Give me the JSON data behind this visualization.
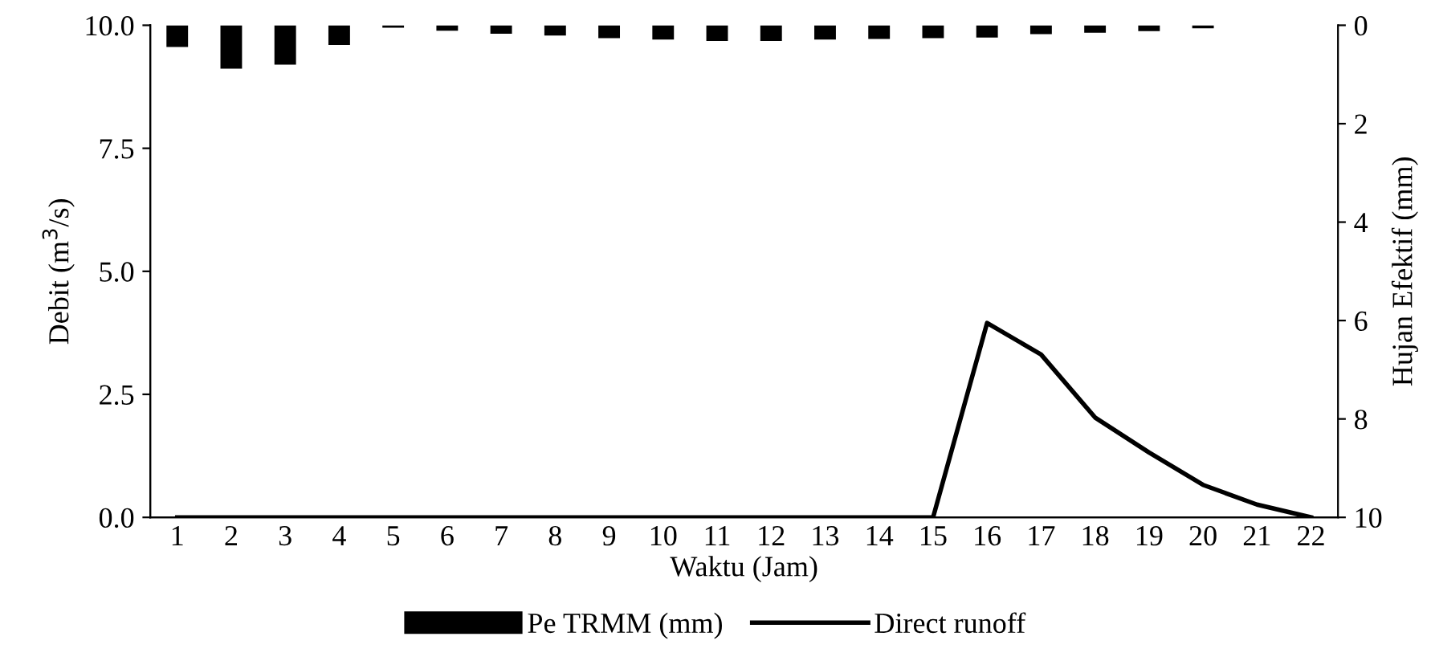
{
  "chart_data": {
    "type": "line",
    "xlabel": "Waktu (Jam)",
    "ylabel": "Debit (m$^{3}$/s)",
    "y2label": "Hujan Efektif (mm)",
    "categories": [
      "1",
      "2",
      "3",
      "4",
      "5",
      "6",
      "7",
      "8",
      "9",
      "10",
      "11",
      "12",
      "13",
      "14",
      "15",
      "16",
      "17",
      "18",
      "19",
      "20",
      "21",
      "22"
    ],
    "series": [
      {
        "name": "Pe TRMM (mm)",
        "type": "bar",
        "axis": "y2",
        "color": "#000000",
        "values": [
          0.44,
          0.88,
          0.8,
          0.4,
          0.05,
          0.11,
          0.17,
          0.21,
          0.26,
          0.29,
          0.32,
          0.32,
          0.29,
          0.28,
          0.26,
          0.25,
          0.18,
          0.15,
          0.12,
          0.06,
          0,
          0
        ]
      },
      {
        "name": "Direct runoff",
        "color": "#000000",
        "values": [
          0,
          0,
          0,
          0,
          0,
          0,
          0,
          0,
          0,
          0,
          0,
          0,
          0,
          0,
          0,
          3.95,
          3.31,
          2.03,
          1.32,
          0.66,
          0.26,
          0
        ]
      }
    ],
    "ylim": [
      0,
      10
    ],
    "yticks": [
      {
        "value": 0,
        "label": "0.0"
      },
      {
        "value": 2.5,
        "label": "2.5"
      },
      {
        "value": 5,
        "label": "5.0"
      },
      {
        "value": 7.5,
        "label": "7.5"
      },
      {
        "value": 10,
        "label": "10.0"
      }
    ],
    "y2lim": [
      10,
      0
    ],
    "y2ticks": [
      0,
      2,
      4,
      6,
      8,
      10
    ],
    "legend": "bottom",
    "grid": false,
    "marker": "none",
    "line_style": "solid"
  }
}
